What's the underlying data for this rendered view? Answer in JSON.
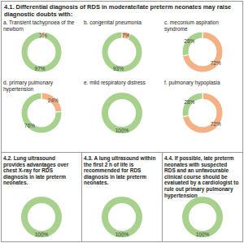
{
  "header": "4.1. Differential diagnosis of RDS in moderate/late preterm neonates may raise diagnostic doubts with:",
  "chart_data": [
    {
      "type": "donut",
      "title": "a. Transient tachypnoea of the newborn",
      "values": [
        3,
        97
      ],
      "value_labels": [
        "3%",
        "97%"
      ],
      "colors": [
        "#f4b183",
        "#a9d18e"
      ],
      "data_labels": true
    },
    {
      "type": "donut",
      "title": "b. congenital pneumonia",
      "values": [
        7,
        93
      ],
      "value_labels": [
        "7%",
        "93%"
      ],
      "colors": [
        "#f4b183",
        "#a9d18e"
      ],
      "data_labels": true
    },
    {
      "type": "donut",
      "title": "c. meconium aspiration syndrome",
      "values": [
        72,
        28
      ],
      "value_labels": [
        "72%",
        "28%"
      ],
      "colors": [
        "#f4b183",
        "#a9d18e"
      ],
      "data_labels": true
    },
    {
      "type": "donut",
      "title": "d. primary pulmonary hypertension",
      "values": [
        24,
        76
      ],
      "value_labels": [
        "24%",
        "76%"
      ],
      "colors": [
        "#f4b183",
        "#a9d18e"
      ],
      "data_labels": true
    },
    {
      "type": "donut",
      "title": "e. mild respiratory distress",
      "values": [
        100
      ],
      "value_labels": [
        "100%"
      ],
      "colors": [
        "#a9d18e"
      ],
      "data_labels": true
    },
    {
      "type": "donut",
      "title": "f. pulmonary hypoplasia",
      "values": [
        72,
        28
      ],
      "value_labels": [
        "72%",
        "28%"
      ],
      "colors": [
        "#f4b183",
        "#a9d18e"
      ],
      "data_labels": true
    },
    {
      "type": "donut",
      "title": "4.2. Lung ultrasound provides advantages over chest X-ray for RDS diagnosis in late preterm neonates.",
      "values": [
        100
      ],
      "value_labels": [
        "100%"
      ],
      "colors": [
        "#a9d18e"
      ],
      "data_labels": true
    },
    {
      "type": "donut",
      "title": "4.3. A lung ultrasound within the first 2 h of life is recommended for RDS diagnosis in late preterm neonates.",
      "values": [
        100
      ],
      "value_labels": [
        "100%"
      ],
      "colors": [
        "#a9d18e"
      ],
      "data_labels": true
    },
    {
      "type": "donut",
      "title": "4.4. If possible, late preterm neonates with suspected RDS and an unfavourable clinical course should be evaluated by a cardiologist to rule out primary pulmonary hypertension",
      "values": [
        100
      ],
      "value_labels": [
        "100%"
      ],
      "colors": [
        "#a9d18e"
      ],
      "data_labels": true
    }
  ]
}
